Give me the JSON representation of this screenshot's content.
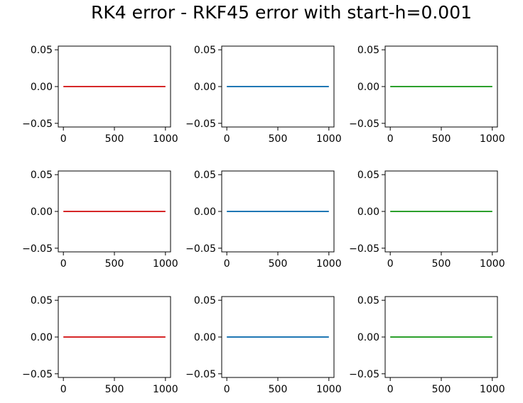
{
  "title": "RK4 error - RKF45 error with start-h=0.001",
  "chart_data": {
    "type": "line",
    "layout": "3x3 grid of subplots",
    "title": "RK4 error - RKF45 error with start-h=0.001",
    "xlim": [
      -50,
      1050
    ],
    "ylim": [
      -0.055,
      0.055
    ],
    "xticks": [
      0,
      500,
      1000
    ],
    "yticks": [
      -0.05,
      0.0,
      0.05
    ],
    "xtick_labels": [
      "0",
      "500",
      "1000"
    ],
    "ytick_labels": [
      "−0.05",
      "0.00",
      "0.05"
    ],
    "grid": false,
    "subplots": [
      {
        "row": 0,
        "col": 0,
        "color": "#d62728",
        "x": [
          0,
          1000
        ],
        "y": [
          0.0,
          0.0
        ]
      },
      {
        "row": 0,
        "col": 1,
        "color": "#1f77b4",
        "x": [
          0,
          1000
        ],
        "y": [
          0.0,
          0.0
        ]
      },
      {
        "row": 0,
        "col": 2,
        "color": "#2ca02c",
        "x": [
          0,
          1000
        ],
        "y": [
          0.0,
          0.0
        ]
      },
      {
        "row": 1,
        "col": 0,
        "color": "#d62728",
        "x": [
          0,
          1000
        ],
        "y": [
          0.0,
          0.0
        ]
      },
      {
        "row": 1,
        "col": 1,
        "color": "#1f77b4",
        "x": [
          0,
          1000
        ],
        "y": [
          0.0,
          0.0
        ]
      },
      {
        "row": 1,
        "col": 2,
        "color": "#2ca02c",
        "x": [
          0,
          1000
        ],
        "y": [
          0.0,
          0.0
        ]
      },
      {
        "row": 2,
        "col": 0,
        "color": "#d62728",
        "x": [
          0,
          1000
        ],
        "y": [
          0.0,
          0.0
        ]
      },
      {
        "row": 2,
        "col": 1,
        "color": "#1f77b4",
        "x": [
          0,
          1000
        ],
        "y": [
          0.0,
          0.0
        ]
      },
      {
        "row": 2,
        "col": 2,
        "color": "#2ca02c",
        "x": [
          0,
          1000
        ],
        "y": [
          0.0,
          0.0
        ]
      }
    ]
  }
}
